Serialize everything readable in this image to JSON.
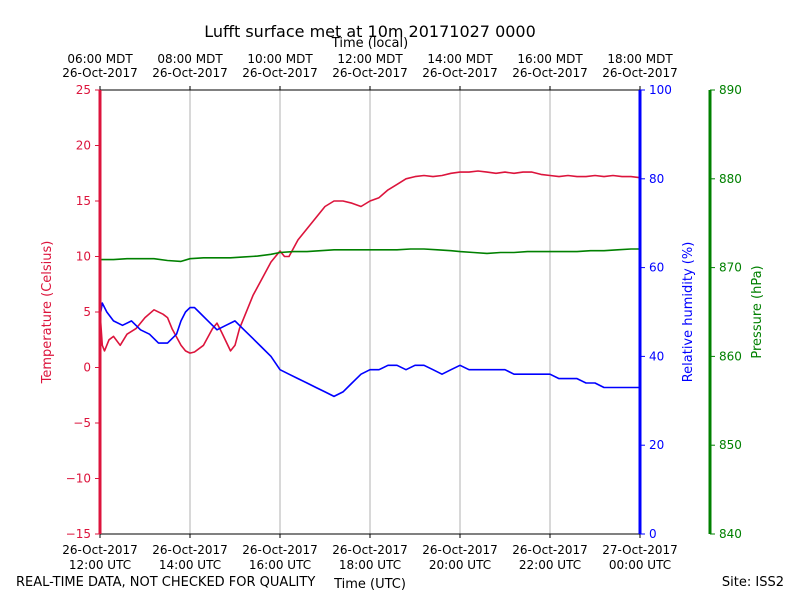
{
  "chart_data": {
    "type": "line",
    "title": "Lufft surface met at 10m 20171027 0000",
    "xlabel_top": "Time (local)",
    "xlabel": "Time (UTC)",
    "footer_left": "REAL-TIME DATA, NOT CHECKED FOR QUALITY",
    "footer_right": "Site: ISS2",
    "xlim_hours_utc": [
      12,
      24
    ],
    "utc_ticks": [
      {
        "h": 12,
        "date": "26-Oct-2017",
        "time": "12:00 UTC"
      },
      {
        "h": 14,
        "date": "26-Oct-2017",
        "time": "14:00 UTC"
      },
      {
        "h": 16,
        "date": "26-Oct-2017",
        "time": "16:00 UTC"
      },
      {
        "h": 18,
        "date": "26-Oct-2017",
        "time": "18:00 UTC"
      },
      {
        "h": 20,
        "date": "26-Oct-2017",
        "time": "20:00 UTC"
      },
      {
        "h": 22,
        "date": "26-Oct-2017",
        "time": "22:00 UTC"
      },
      {
        "h": 24,
        "date": "27-Oct-2017",
        "time": "00:00 UTC"
      }
    ],
    "local_ticks": [
      {
        "h": 12,
        "time": "06:00 MDT",
        "date": "26-Oct-2017"
      },
      {
        "h": 14,
        "time": "08:00 MDT",
        "date": "26-Oct-2017"
      },
      {
        "h": 16,
        "time": "10:00 MDT",
        "date": "26-Oct-2017"
      },
      {
        "h": 18,
        "time": "12:00 MDT",
        "date": "26-Oct-2017"
      },
      {
        "h": 20,
        "time": "14:00 MDT",
        "date": "26-Oct-2017"
      },
      {
        "h": 22,
        "time": "16:00 MDT",
        "date": "26-Oct-2017"
      },
      {
        "h": 24,
        "time": "18:00 MDT",
        "date": "26-Oct-2017"
      }
    ],
    "axes": {
      "temperature": {
        "label": "Temperature (Celsius)",
        "ylim": [
          -15,
          25
        ],
        "ticks": [
          -15,
          -10,
          -5,
          0,
          5,
          10,
          15,
          20,
          25
        ],
        "color": "#dc143c"
      },
      "humidity": {
        "label": "Relative humidity (%)",
        "ylim": [
          0,
          100
        ],
        "ticks": [
          0,
          20,
          40,
          60,
          80,
          100
        ],
        "color": "#0000ff"
      },
      "pressure": {
        "label": "Pressure (hPa)",
        "ylim": [
          840,
          890
        ],
        "ticks": [
          840,
          850,
          860,
          870,
          880,
          890
        ],
        "color": "#008000"
      }
    },
    "series": [
      {
        "name": "Temperature",
        "axis": "temperature",
        "color": "#dc143c",
        "x": [
          12.0,
          12.05,
          12.1,
          12.2,
          12.3,
          12.45,
          12.6,
          12.8,
          13.0,
          13.2,
          13.4,
          13.5,
          13.6,
          13.8,
          13.9,
          14.0,
          14.1,
          14.3,
          14.5,
          14.6,
          14.7,
          14.9,
          15.0,
          15.1,
          15.2,
          15.4,
          15.6,
          15.8,
          16.0,
          16.1,
          16.2,
          16.4,
          16.6,
          16.8,
          17.0,
          17.2,
          17.4,
          17.6,
          17.8,
          18.0,
          18.2,
          18.4,
          18.6,
          18.8,
          19.0,
          19.2,
          19.4,
          19.6,
          19.8,
          20.0,
          20.2,
          20.4,
          20.6,
          20.8,
          21.0,
          21.2,
          21.4,
          21.6,
          21.8,
          22.0,
          22.2,
          22.4,
          22.6,
          22.8,
          23.0,
          23.2,
          23.4,
          23.6,
          23.8,
          24.0
        ],
        "values": [
          5.0,
          2.0,
          1.5,
          2.5,
          2.8,
          2.0,
          3.0,
          3.5,
          4.5,
          5.2,
          4.8,
          4.5,
          3.5,
          2.0,
          1.5,
          1.3,
          1.4,
          2.0,
          3.5,
          4.0,
          3.2,
          1.5,
          2.0,
          3.5,
          4.5,
          6.5,
          8.0,
          9.5,
          10.5,
          10.0,
          10.0,
          11.5,
          12.5,
          13.5,
          14.5,
          15.0,
          15.0,
          14.8,
          14.5,
          15.0,
          15.3,
          16.0,
          16.5,
          17.0,
          17.2,
          17.3,
          17.2,
          17.3,
          17.5,
          17.6,
          17.6,
          17.7,
          17.6,
          17.5,
          17.6,
          17.5,
          17.6,
          17.6,
          17.4,
          17.3,
          17.2,
          17.3,
          17.2,
          17.2,
          17.3,
          17.2,
          17.3,
          17.2,
          17.2,
          17.1
        ]
      },
      {
        "name": "Relative humidity",
        "axis": "humidity",
        "color": "#0000ff",
        "x": [
          12.0,
          12.05,
          12.15,
          12.3,
          12.5,
          12.7,
          12.9,
          13.1,
          13.3,
          13.5,
          13.7,
          13.8,
          13.9,
          14.0,
          14.1,
          14.2,
          14.4,
          14.6,
          14.8,
          15.0,
          15.2,
          15.4,
          15.6,
          15.8,
          16.0,
          16.2,
          16.4,
          16.6,
          16.8,
          17.0,
          17.2,
          17.4,
          17.6,
          17.8,
          18.0,
          18.2,
          18.4,
          18.6,
          18.8,
          19.0,
          19.2,
          19.4,
          19.6,
          19.8,
          20.0,
          20.2,
          20.4,
          20.6,
          20.8,
          21.0,
          21.2,
          21.4,
          21.6,
          21.8,
          22.0,
          22.2,
          22.4,
          22.6,
          22.8,
          23.0,
          23.2,
          23.4,
          23.6,
          23.8,
          24.0
        ],
        "values": [
          49,
          52,
          50,
          48,
          47,
          48,
          46,
          45,
          43,
          43,
          45,
          48,
          50,
          51,
          51,
          50,
          48,
          46,
          47,
          48,
          46,
          44,
          42,
          40,
          37,
          36,
          35,
          34,
          33,
          32,
          31,
          32,
          34,
          36,
          37,
          37,
          38,
          38,
          37,
          38,
          38,
          37,
          36,
          37,
          38,
          37,
          37,
          37,
          37,
          37,
          36,
          36,
          36,
          36,
          36,
          35,
          35,
          35,
          34,
          34,
          33,
          33,
          33,
          33,
          33
        ]
      },
      {
        "name": "Pressure",
        "axis": "pressure",
        "color": "#008000",
        "x": [
          12.0,
          12.3,
          12.6,
          12.9,
          13.2,
          13.5,
          13.8,
          14.0,
          14.3,
          14.6,
          14.9,
          15.2,
          15.5,
          15.8,
          16.0,
          16.3,
          16.6,
          16.9,
          17.2,
          17.5,
          17.8,
          18.0,
          18.3,
          18.6,
          18.9,
          19.2,
          19.5,
          19.8,
          20.0,
          20.3,
          20.6,
          20.9,
          21.2,
          21.5,
          21.8,
          22.0,
          22.3,
          22.6,
          22.9,
          23.2,
          23.5,
          23.8,
          24.0
        ],
        "values": [
          870.9,
          870.9,
          871.0,
          871.0,
          871.0,
          870.8,
          870.7,
          871.0,
          871.1,
          871.1,
          871.1,
          871.2,
          871.3,
          871.5,
          871.7,
          871.8,
          871.8,
          871.9,
          872.0,
          872.0,
          872.0,
          872.0,
          872.0,
          872.0,
          872.1,
          872.1,
          872.0,
          871.9,
          871.8,
          871.7,
          871.6,
          871.7,
          871.7,
          871.8,
          871.8,
          871.8,
          871.8,
          871.8,
          871.9,
          871.9,
          872.0,
          872.1,
          872.1
        ]
      }
    ]
  }
}
